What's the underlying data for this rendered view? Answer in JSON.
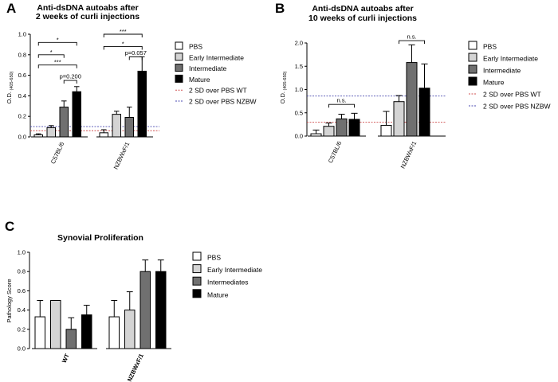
{
  "chart_data": [
    {
      "id": "A",
      "panel_label": "A",
      "type": "bar",
      "title_lines": [
        "Anti-dsDNA autoabs after",
        "2 weeks of curli injections"
      ],
      "ylabel_main": "O.D.",
      "ylabel_sub": "(405-650)",
      "ylim": [
        0,
        1.0
      ],
      "yticks": [
        "0.0",
        "0.2",
        "0.4",
        "0.6",
        "0.8",
        "1.0"
      ],
      "categories": [
        "C57BL/6",
        "NZBWxF/1"
      ],
      "series": [
        {
          "name": "PBS",
          "color": "#ffffff",
          "values": [
            0.02,
            0.04
          ],
          "errors": [
            0.01,
            0.03
          ]
        },
        {
          "name": "Early Intermediate",
          "color": "#d4d4d4",
          "values": [
            0.09,
            0.22
          ],
          "errors": [
            0.02,
            0.03
          ]
        },
        {
          "name": "Intermediate",
          "color": "#707070",
          "values": [
            0.29,
            0.19
          ],
          "errors": [
            0.06,
            0.1
          ]
        },
        {
          "name": "Mature",
          "color": "#000000",
          "values": [
            0.44,
            0.64
          ],
          "errors": [
            0.05,
            0.14
          ]
        }
      ],
      "reference_lines": [
        {
          "name": "2 SD over PBS WT",
          "value": 0.06,
          "color": "#d05050"
        },
        {
          "name": "2 SD over PBS NZBW",
          "value": 0.1,
          "color": "#4a4ab0"
        }
      ],
      "annotations": [
        {
          "text": "*",
          "group": 0,
          "from": 0,
          "to": 3,
          "y": 0.92
        },
        {
          "text": "*",
          "group": 0,
          "from": 0,
          "to": 2,
          "y": 0.8
        },
        {
          "text": "***",
          "group": 0,
          "from": 0,
          "to": 3,
          "y": 0.7
        },
        {
          "text": "p=0.200",
          "group": 0,
          "from": 2,
          "to": 3,
          "y": 0.55
        },
        {
          "text": "***",
          "group": 1,
          "from": 0,
          "to": 3,
          "y": 1.0
        },
        {
          "text": "*",
          "group": 1,
          "from": 0,
          "to": 3,
          "y": 0.88
        },
        {
          "text": "p=0.057",
          "group": 1,
          "from": 2,
          "to": 3,
          "y": 0.78
        }
      ]
    },
    {
      "id": "B",
      "panel_label": "B",
      "type": "bar",
      "title_lines": [
        "Anti-dsDNA autoabs after",
        "10 weeks of curli injections"
      ],
      "ylabel_main": "O.D.",
      "ylabel_sub": "(405-650)",
      "ylim": [
        0,
        2.0
      ],
      "yticks": [
        "0.0",
        "0.5",
        "1.0",
        "1.5",
        "2.0"
      ],
      "categories": [
        "C57BL/6",
        "NZBWxF/1"
      ],
      "series": [
        {
          "name": "PBS",
          "color": "#ffffff",
          "values": [
            0.05,
            0.23
          ],
          "errors": [
            0.08,
            0.3
          ]
        },
        {
          "name": "Early Intermediate",
          "color": "#d4d4d4",
          "values": [
            0.21,
            0.74
          ],
          "errors": [
            0.07,
            0.13
          ]
        },
        {
          "name": "Intermediate",
          "color": "#707070",
          "values": [
            0.37,
            1.58
          ],
          "errors": [
            0.1,
            0.38
          ]
        },
        {
          "name": "Mature",
          "color": "#000000",
          "values": [
            0.36,
            1.03
          ],
          "errors": [
            0.13,
            0.52
          ]
        }
      ],
      "reference_lines": [
        {
          "name": "2 SD over PBS WT",
          "value": 0.3,
          "color": "#d05050"
        },
        {
          "name": "2 SD over PBS NZBW",
          "value": 0.86,
          "color": "#4a4ab0"
        }
      ],
      "annotations": [
        {
          "text": "n.s.",
          "group": 0,
          "from": 1,
          "to": 3,
          "y": 0.68
        },
        {
          "text": "n.s.",
          "group": 1,
          "from": 1,
          "to": 3,
          "y": 2.05
        }
      ]
    },
    {
      "id": "C",
      "panel_label": "C",
      "type": "bar",
      "title_lines": [
        "Synovial Proliferation"
      ],
      "ylabel_main": "Pathology Score",
      "ylabel_sub": "",
      "ylim": [
        0,
        1.0
      ],
      "yticks": [
        "0.0",
        "0.2",
        "0.4",
        "0.6",
        "0.8",
        "1.0"
      ],
      "categories": [
        "WT",
        "NZBWxF/1"
      ],
      "series": [
        {
          "name": "PBS",
          "color": "#ffffff",
          "values": [
            0.33,
            0.33
          ],
          "errors": [
            0.17,
            0.17
          ]
        },
        {
          "name": "Early Intermediate",
          "color": "#d4d4d4",
          "values": [
            0.5,
            0.4
          ],
          "errors": [
            0.0,
            0.19
          ]
        },
        {
          "name": "Intermediates",
          "color": "#707070",
          "values": [
            0.2,
            0.8
          ],
          "errors": [
            0.12,
            0.12
          ]
        },
        {
          "name": "Mature",
          "color": "#000000",
          "values": [
            0.35,
            0.8
          ],
          "errors": [
            0.1,
            0.12
          ]
        }
      ],
      "reference_lines": [],
      "annotations": []
    }
  ]
}
